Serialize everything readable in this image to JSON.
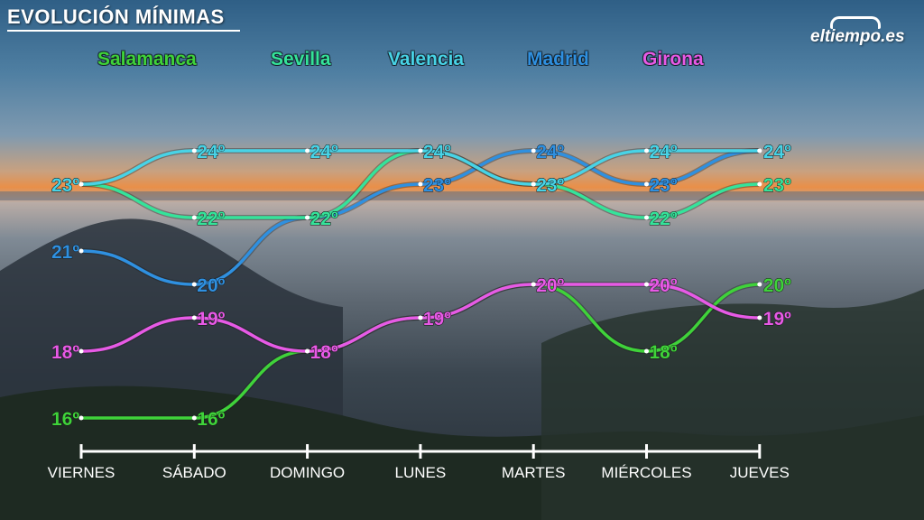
{
  "title": "EVOLUCIÓN MÍNIMAS",
  "brand": "eltiempo.es",
  "chart_data": {
    "type": "line",
    "title": "EVOLUCIÓN MÍNIMAS",
    "categories": [
      "VIERNES",
      "SÁBADO",
      "DOMINGO",
      "LUNES",
      "MARTES",
      "MIÉRCOLES",
      "JUEVES"
    ],
    "ylabel": "",
    "unit": "º",
    "legend_position": "top",
    "grid": false,
    "series": [
      {
        "name": "Salamanca",
        "color": "#3fd23a",
        "values": [
          16,
          16,
          18,
          19,
          20,
          18,
          20
        ]
      },
      {
        "name": "Sevilla",
        "color": "#35e39a",
        "values": [
          23,
          22,
          22,
          24,
          23,
          22,
          23
        ]
      },
      {
        "name": "Valencia",
        "color": "#48d3e6",
        "values": [
          23,
          24,
          24,
          24,
          23,
          24,
          24
        ]
      },
      {
        "name": "Madrid",
        "color": "#2f90e0",
        "values": [
          21,
          20,
          22,
          23,
          24,
          23,
          24
        ]
      },
      {
        "name": "Girona",
        "color": "#e75ae6",
        "values": [
          18,
          19,
          18,
          19,
          20,
          20,
          19
        ]
      }
    ]
  }
}
